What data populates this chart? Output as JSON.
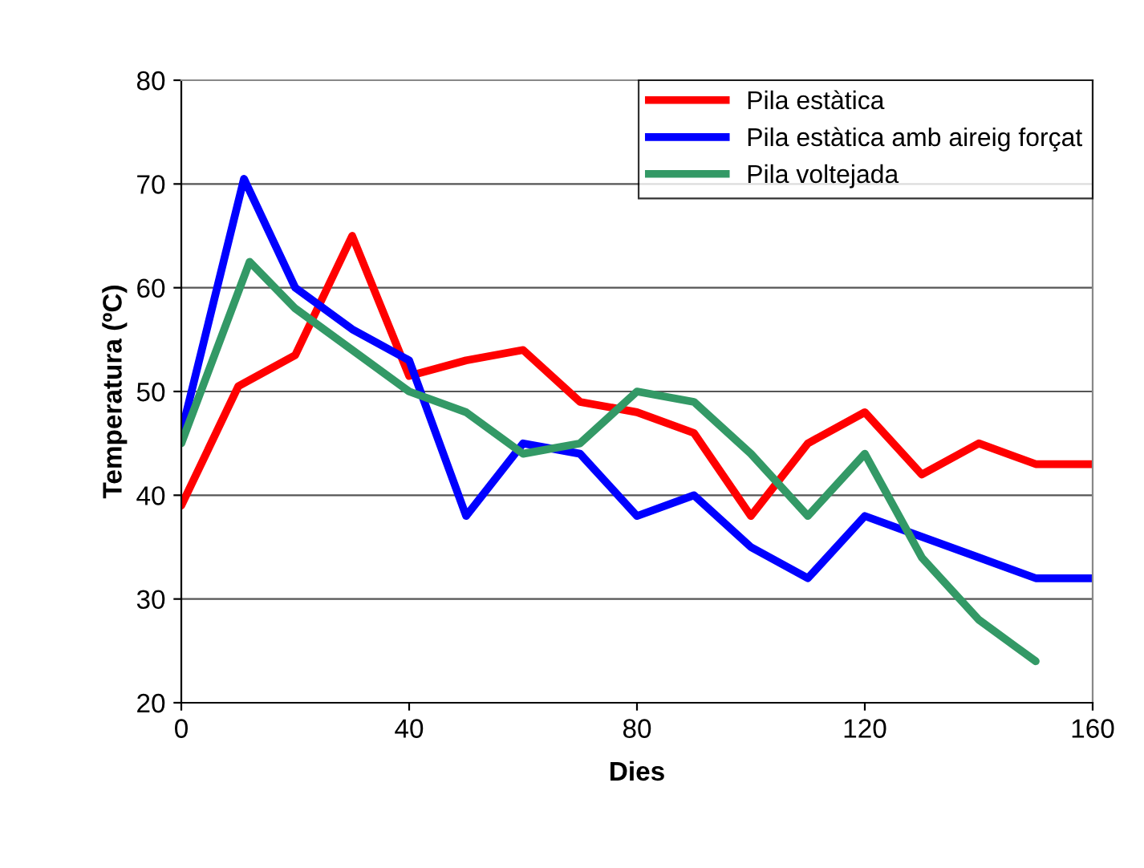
{
  "chart_data": {
    "type": "line",
    "xlabel": "Dies",
    "ylabel": "Temperatura (ºC)",
    "xlim": [
      0,
      160
    ],
    "xticks": [
      0,
      40,
      80,
      120,
      160
    ],
    "ylim": [
      20,
      80
    ],
    "yticks": [
      20,
      30,
      40,
      50,
      60,
      70,
      80
    ],
    "grid": "y",
    "legend": "top right",
    "line_style": "solid",
    "marker": "none",
    "series": [
      {
        "name": "Pila estàtica",
        "color": "#ff0000",
        "x": [
          0,
          10,
          20,
          30,
          40,
          50,
          60,
          70,
          80,
          90,
          100,
          110,
          120,
          130,
          140,
          150,
          160
        ],
        "values": [
          39,
          50.5,
          53.5,
          65,
          51.5,
          53,
          54,
          49,
          48,
          46,
          38,
          45,
          48,
          42,
          45,
          43,
          43
        ]
      },
      {
        "name": "Pila estàtica amb aireig forçat",
        "color": "#0000ff",
        "x": [
          0,
          11,
          20,
          30,
          40,
          50,
          60,
          70,
          80,
          90,
          100,
          110,
          120,
          130,
          140,
          150,
          160
        ],
        "values": [
          46,
          70.5,
          60,
          56,
          53,
          38,
          45,
          44,
          38,
          40,
          35,
          32,
          38,
          36,
          34,
          32,
          32
        ]
      },
      {
        "name": "Pila voltejada",
        "color": "#339966",
        "x": [
          0,
          12,
          20,
          30,
          40,
          50,
          60,
          70,
          80,
          90,
          100,
          110,
          120,
          130,
          140,
          150
        ],
        "values": [
          45,
          62.5,
          58,
          54,
          50,
          48,
          44,
          45,
          50,
          49,
          44,
          38,
          44,
          34,
          28,
          24
        ]
      }
    ]
  }
}
